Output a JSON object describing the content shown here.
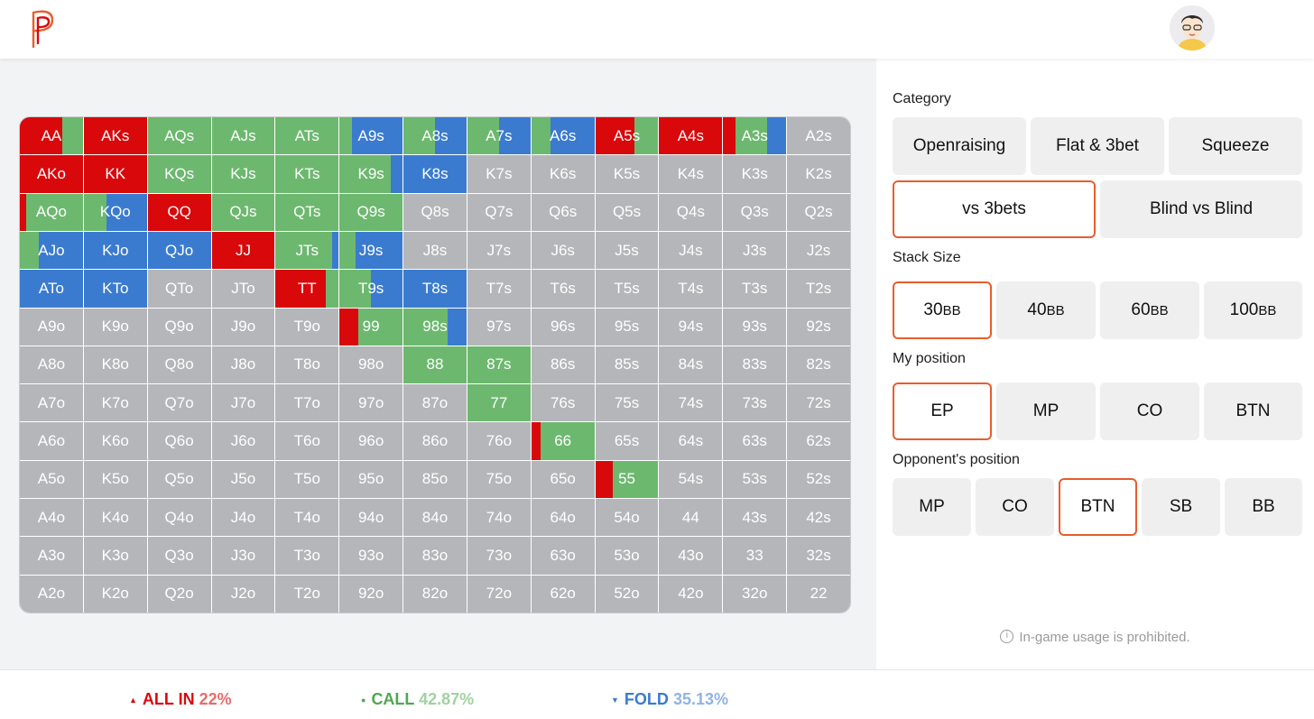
{
  "header": {
    "logo": "p-logo-icon",
    "avatar": "user-avatar"
  },
  "colors": {
    "allin": "#d9080b",
    "call": "#6db86f",
    "fold": "#3a7bd0",
    "empty": "#b5b6b9",
    "accent": "#e85d2c"
  },
  "matrix": [
    [
      "AA",
      "AKs",
      "AQs",
      "AJs",
      "ATs",
      "A9s",
      "A8s",
      "A7s",
      "A6s",
      "A5s",
      "A4s",
      "A3s",
      "A2s"
    ],
    [
      "AKo",
      "KK",
      "KQs",
      "KJs",
      "KTs",
      "K9s",
      "K8s",
      "K7s",
      "K6s",
      "K5s",
      "K4s",
      "K3s",
      "K2s"
    ],
    [
      "AQo",
      "KQo",
      "QQ",
      "QJs",
      "QTs",
      "Q9s",
      "Q8s",
      "Q7s",
      "Q6s",
      "Q5s",
      "Q4s",
      "Q3s",
      "Q2s"
    ],
    [
      "AJo",
      "KJo",
      "QJo",
      "JJ",
      "JTs",
      "J9s",
      "J8s",
      "J7s",
      "J6s",
      "J5s",
      "J4s",
      "J3s",
      "J2s"
    ],
    [
      "ATo",
      "KTo",
      "QTo",
      "JTo",
      "TT",
      "T9s",
      "T8s",
      "T7s",
      "T6s",
      "T5s",
      "T4s",
      "T3s",
      "T2s"
    ],
    [
      "A9o",
      "K9o",
      "Q9o",
      "J9o",
      "T9o",
      "99",
      "98s",
      "97s",
      "96s",
      "95s",
      "94s",
      "93s",
      "92s"
    ],
    [
      "A8o",
      "K8o",
      "Q8o",
      "J8o",
      "T8o",
      "98o",
      "88",
      "87s",
      "86s",
      "85s",
      "84s",
      "83s",
      "82s"
    ],
    [
      "A7o",
      "K7o",
      "Q7o",
      "J7o",
      "T7o",
      "97o",
      "87o",
      "77",
      "76s",
      "75s",
      "74s",
      "73s",
      "72s"
    ],
    [
      "A6o",
      "K6o",
      "Q6o",
      "J6o",
      "T6o",
      "96o",
      "86o",
      "76o",
      "66",
      "65s",
      "64s",
      "63s",
      "62s"
    ],
    [
      "A5o",
      "K5o",
      "Q5o",
      "J5o",
      "T5o",
      "95o",
      "85o",
      "75o",
      "65o",
      "55",
      "54s",
      "53s",
      "52s"
    ],
    [
      "A4o",
      "K4o",
      "Q4o",
      "J4o",
      "T4o",
      "94o",
      "84o",
      "74o",
      "64o",
      "54o",
      "44",
      "43s",
      "42s"
    ],
    [
      "A3o",
      "K3o",
      "Q3o",
      "J3o",
      "T3o",
      "93o",
      "83o",
      "73o",
      "63o",
      "53o",
      "43o",
      "33",
      "32s"
    ],
    [
      "A2o",
      "K2o",
      "Q2o",
      "J2o",
      "T2o",
      "92o",
      "82o",
      "72o",
      "62o",
      "52o",
      "42o",
      "32o",
      "22"
    ]
  ],
  "mix": {
    "AA": [
      0.68,
      0.32,
      0
    ],
    "AKs": [
      1,
      0,
      0
    ],
    "AQs": [
      0,
      1,
      0
    ],
    "AJs": [
      0,
      1,
      0
    ],
    "ATs": [
      0,
      1,
      0
    ],
    "A9s": [
      0,
      0.2,
      0.8
    ],
    "A8s": [
      0,
      0.5,
      0.5
    ],
    "A7s": [
      0,
      0.5,
      0.5
    ],
    "A6s": [
      0,
      0.3,
      0.7
    ],
    "A5s": [
      0.62,
      0.38,
      0
    ],
    "A4s": [
      1,
      0,
      0
    ],
    "A3s": [
      0.2,
      0.5,
      0.3
    ],
    "AKo": [
      1,
      0,
      0
    ],
    "KK": [
      1,
      0,
      0
    ],
    "KQs": [
      0,
      1,
      0
    ],
    "KJs": [
      0,
      1,
      0
    ],
    "KTs": [
      0,
      1,
      0
    ],
    "K9s": [
      0,
      0.82,
      0.18
    ],
    "K8s": [
      0,
      0,
      1
    ],
    "AQo": [
      0.1,
      0.9,
      0
    ],
    "KQo": [
      0,
      0.36,
      0.64
    ],
    "QQ": [
      1,
      0,
      0
    ],
    "QJs": [
      0,
      1,
      0
    ],
    "QTs": [
      0,
      1,
      0
    ],
    "Q9s": [
      0,
      1,
      0
    ],
    "AJo": [
      0,
      0.3,
      0.7
    ],
    "KJo": [
      0,
      0,
      1
    ],
    "QJo": [
      0,
      0,
      1
    ],
    "JJ": [
      1,
      0,
      0
    ],
    "JTs": [
      0,
      0.9,
      0.1
    ],
    "J9s": [
      0,
      0.25,
      0.75
    ],
    "ATo": [
      0,
      0,
      1
    ],
    "KTo": [
      0,
      0,
      1
    ],
    "TT": [
      0.8,
      0.2,
      0
    ],
    "T9s": [
      0,
      0.5,
      0.5
    ],
    "T8s": [
      0,
      0,
      1
    ],
    "99": [
      0.3,
      0.7,
      0
    ],
    "98s": [
      0,
      0.7,
      0.3
    ],
    "88": [
      0,
      1,
      0
    ],
    "87s": [
      0,
      1,
      0
    ],
    "77": [
      0,
      1,
      0
    ],
    "66": [
      0.15,
      0.85,
      0
    ],
    "55": [
      0.28,
      0.72,
      0
    ]
  },
  "panel": {
    "category": {
      "title": "Category",
      "options": [
        "Openraising",
        "Flat & 3bet",
        "Squeeze",
        "vs 3bets",
        "Blind vs Blind"
      ],
      "selected": "vs 3bets"
    },
    "stack": {
      "title": "Stack Size",
      "options": [
        {
          "num": "30",
          "unit": "BB"
        },
        {
          "num": "40",
          "unit": "BB"
        },
        {
          "num": "60",
          "unit": "BB"
        },
        {
          "num": "100",
          "unit": "BB"
        }
      ],
      "selected": "30BB"
    },
    "my_position": {
      "title": "My position",
      "options": [
        "EP",
        "MP",
        "CO",
        "BTN"
      ],
      "selected": "EP"
    },
    "opp_position": {
      "title": "Opponent's position",
      "options": [
        "MP",
        "CO",
        "BTN",
        "SB",
        "BB"
      ],
      "selected": "BTN"
    },
    "note": "In-game usage is prohibited.",
    "note_icon": "i"
  },
  "footer": {
    "allin": {
      "label": "ALL IN",
      "pct": "22%",
      "icon": "triangle-up-icon"
    },
    "call": {
      "label": "CALL",
      "pct": "42.87%",
      "icon": "dot-icon"
    },
    "fold": {
      "label": "FOLD",
      "pct": "35.13%",
      "icon": "triangle-down-icon"
    }
  }
}
